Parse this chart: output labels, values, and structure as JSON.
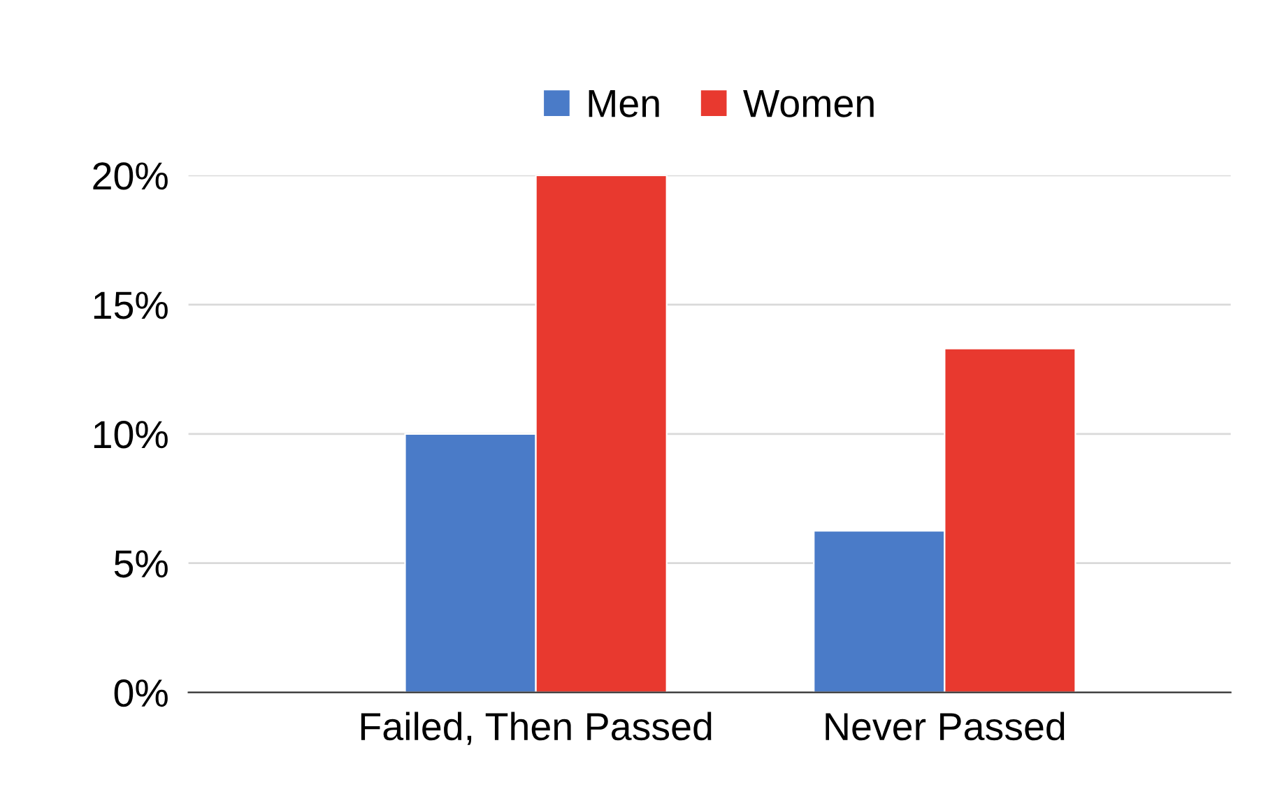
{
  "chart_data": {
    "type": "bar",
    "categories": [
      "Failed, Then Passed",
      "Never Passed"
    ],
    "series": [
      {
        "name": "Men",
        "color": "#4a7bc8",
        "values": [
          10,
          6.25
        ]
      },
      {
        "name": "Women",
        "color": "#e8392f",
        "values": [
          20,
          13.3
        ]
      }
    ],
    "ylim": [
      0,
      20
    ],
    "yticks": [
      {
        "value": 0,
        "label": "0%"
      },
      {
        "value": 5,
        "label": "5%"
      },
      {
        "value": 10,
        "label": "10%"
      },
      {
        "value": 15,
        "label": "15%"
      },
      {
        "value": 20,
        "label": "20%"
      }
    ],
    "grid": "y",
    "legend": "top"
  }
}
